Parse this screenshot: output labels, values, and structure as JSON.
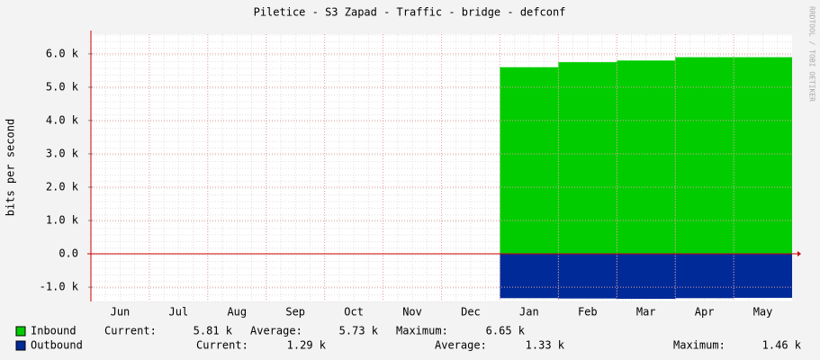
{
  "chart_data": {
    "type": "area",
    "title": "Piletice - S3 Zapad - Traffic - bridge - defconf",
    "y_label": "bits per second",
    "side_note": "RRDTOOL / TOBI OETIKER",
    "categories": [
      "Jun",
      "Jul",
      "Aug",
      "Sep",
      "Oct",
      "Nov",
      "Dec",
      "Jan",
      "Feb",
      "Mar",
      "Apr",
      "May"
    ],
    "series": [
      {
        "name": "Inbound",
        "color": "#00cc00",
        "values": [
          null,
          null,
          null,
          null,
          null,
          null,
          null,
          5600,
          5750,
          5800,
          5900,
          5900
        ],
        "stats": [
          {
            "label": "Current:",
            "value": "5.81 k"
          },
          {
            "label": "Average:",
            "value": "5.73 k"
          },
          {
            "label": "Maximum:",
            "value": "6.65 k"
          }
        ]
      },
      {
        "name": "Outbound",
        "color": "#002a97",
        "values": [
          null,
          null,
          null,
          null,
          null,
          null,
          null,
          -1330,
          -1340,
          -1350,
          -1330,
          -1320
        ],
        "stats": [
          {
            "label": "Current:",
            "value": "1.29 k"
          },
          {
            "label": "Average:",
            "value": "1.33 k"
          },
          {
            "label": "Maximum:",
            "value": "1.46 k"
          }
        ]
      }
    ],
    "ylim": [
      -1430,
      6590
    ],
    "yticks": [
      {
        "value": -1000,
        "label": "-1.0 k"
      },
      {
        "value": 0,
        "label": "0.0"
      },
      {
        "value": 1000,
        "label": "1.0 k"
      },
      {
        "value": 2000,
        "label": "2.0 k"
      },
      {
        "value": 3000,
        "label": "3.0 k"
      },
      {
        "value": 4000,
        "label": "4.0 k"
      },
      {
        "value": 5000,
        "label": "5.0 k"
      },
      {
        "value": 6000,
        "label": "6.0 k"
      }
    ],
    "grid": true
  }
}
